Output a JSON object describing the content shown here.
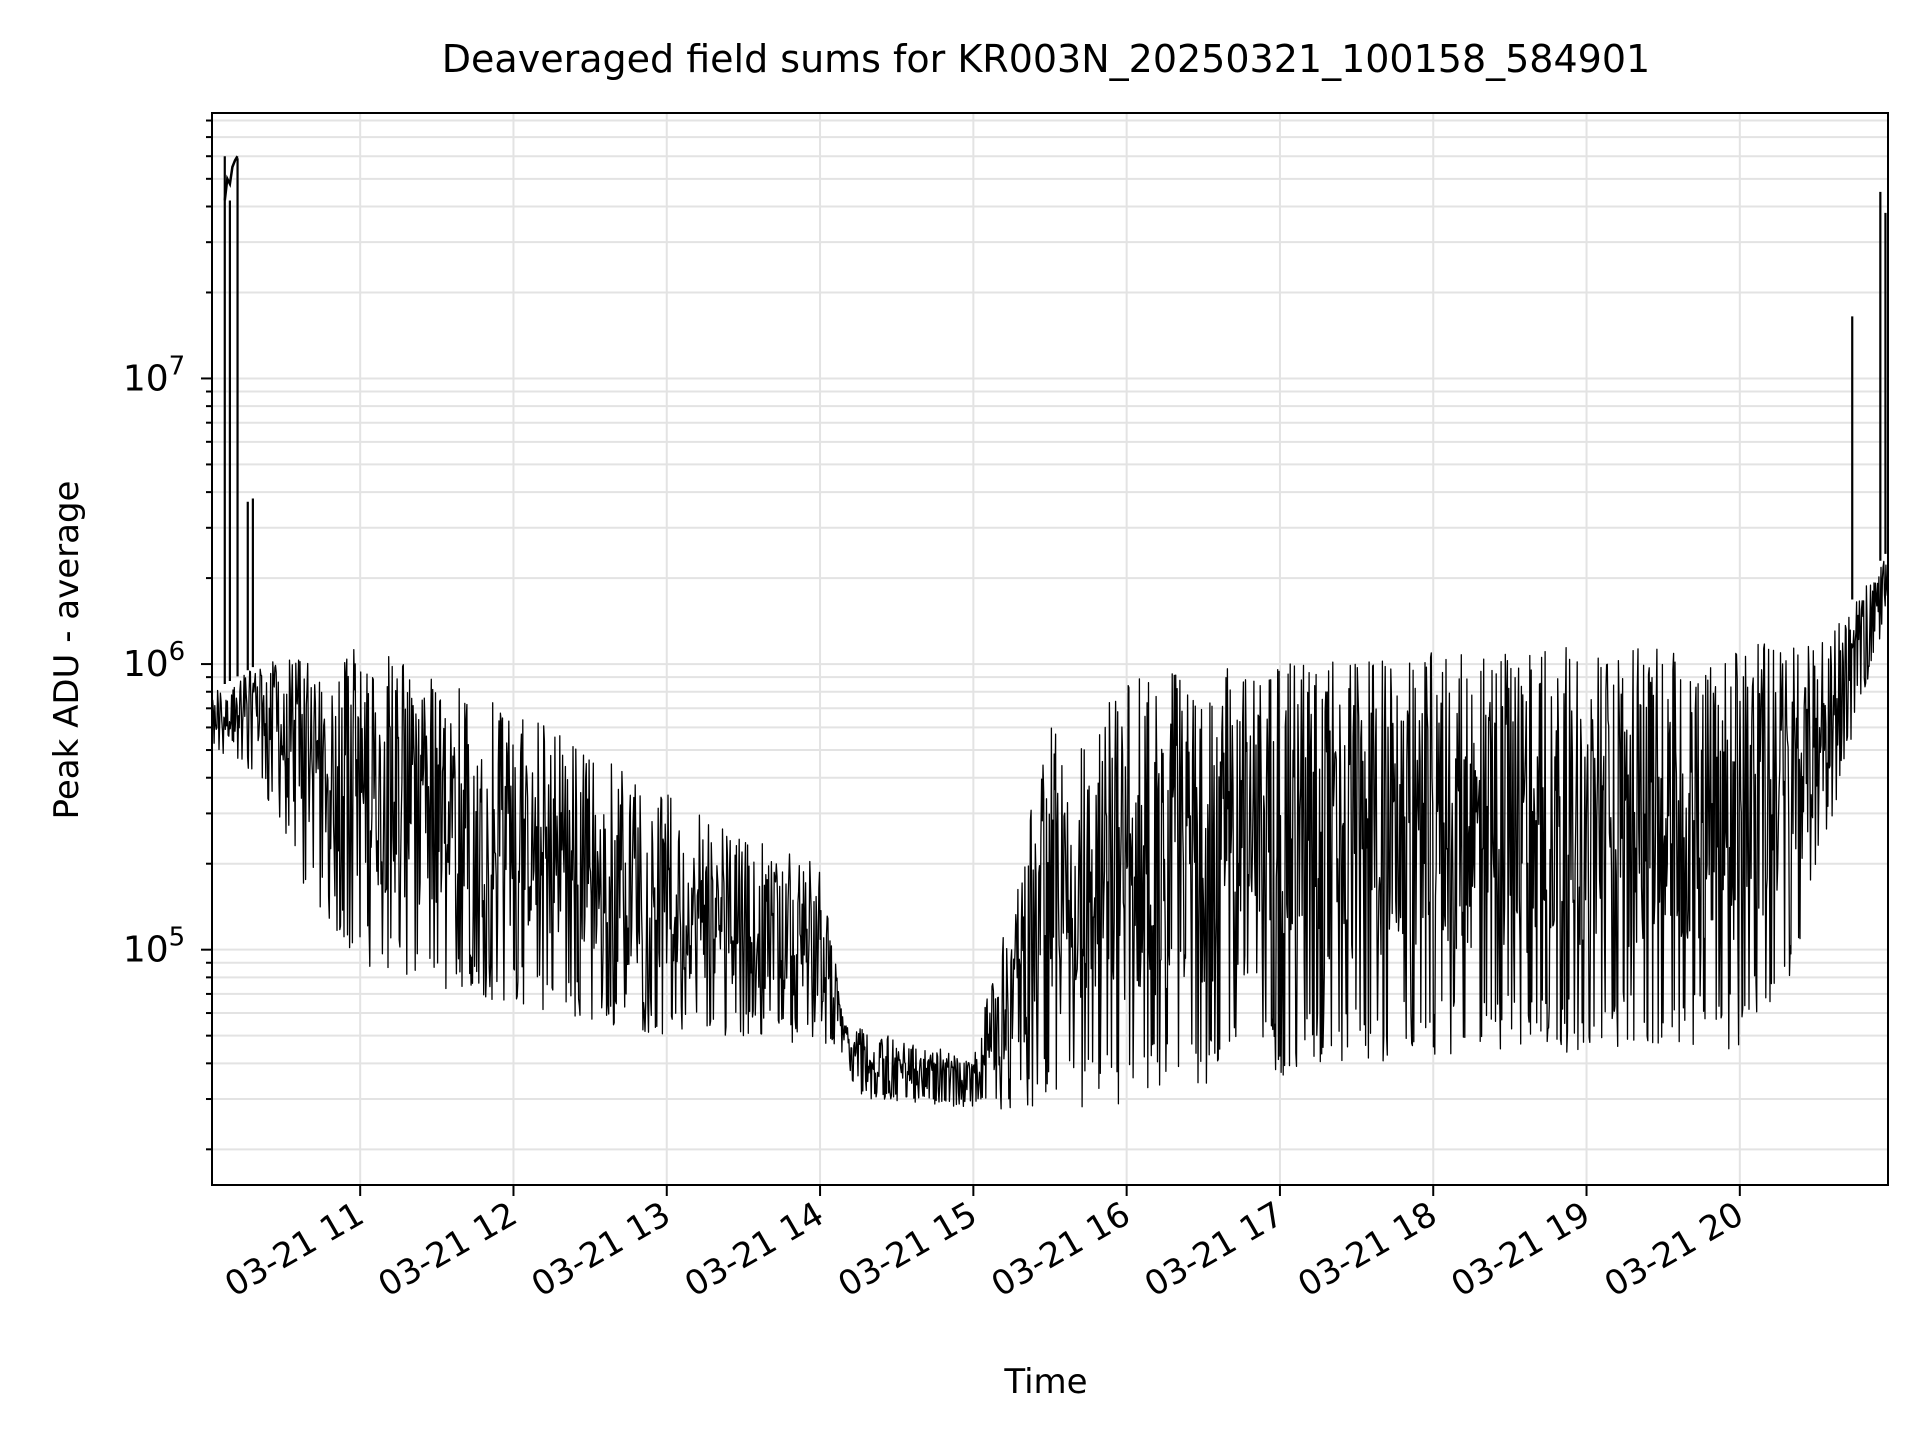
{
  "chart_data": {
    "type": "line",
    "title": "Deaveraged field sums for KR003N_20250321_100158_584901",
    "xlabel": "Time",
    "ylabel": "Peak ADU - average",
    "yscale": "log",
    "ylim": [
      15000,
      85000000
    ],
    "xlim": [
      "2025-03-21 10:02",
      "2025-03-21 20:58"
    ],
    "grid": true,
    "line_color": "#000000",
    "y_ticks": [
      {
        "value": 100000,
        "base": "10",
        "exp": "5"
      },
      {
        "value": 1000000,
        "base": "10",
        "exp": "6"
      },
      {
        "value": 10000000,
        "base": "10",
        "exp": "7"
      }
    ],
    "x_ticks": [
      {
        "value": "2025-03-21 11:00",
        "label": "03-21 11"
      },
      {
        "value": "2025-03-21 12:00",
        "label": "03-21 12"
      },
      {
        "value": "2025-03-21 13:00",
        "label": "03-21 13"
      },
      {
        "value": "2025-03-21 14:00",
        "label": "03-21 14"
      },
      {
        "value": "2025-03-21 15:00",
        "label": "03-21 15"
      },
      {
        "value": "2025-03-21 16:00",
        "label": "03-21 16"
      },
      {
        "value": "2025-03-21 17:00",
        "label": "03-21 17"
      },
      {
        "value": "2025-03-21 18:00",
        "label": "03-21 18"
      },
      {
        "value": "2025-03-21 19:00",
        "label": "03-21 19"
      },
      {
        "value": "2025-03-21 20:00",
        "label": "03-21 20"
      }
    ],
    "series": [
      {
        "style": "dense oscillating signal: low envelope and high envelope over time",
        "low_envelope": [
          {
            "x": "2025-03-21 10:02",
            "y": 500000
          },
          {
            "x": "2025-03-21 10:20",
            "y": 400000
          },
          {
            "x": "2025-03-21 10:40",
            "y": 150000
          },
          {
            "x": "2025-03-21 11:00",
            "y": 90000
          },
          {
            "x": "2025-03-21 11:30",
            "y": 70000
          },
          {
            "x": "2025-03-21 12:00",
            "y": 65000
          },
          {
            "x": "2025-03-21 12:30",
            "y": 55000
          },
          {
            "x": "2025-03-21 13:00",
            "y": 50000
          },
          {
            "x": "2025-03-21 13:30",
            "y": 50000
          },
          {
            "x": "2025-03-21 14:08",
            "y": 45000
          },
          {
            "x": "2025-03-21 14:15",
            "y": 30000
          },
          {
            "x": "2025-03-21 15:00",
            "y": 28000
          },
          {
            "x": "2025-03-21 15:30",
            "y": 27000
          },
          {
            "x": "2025-03-21 16:00",
            "y": 27000
          },
          {
            "x": "2025-03-21 16:30",
            "y": 33000
          },
          {
            "x": "2025-03-21 17:00",
            "y": 36000
          },
          {
            "x": "2025-03-21 18:00",
            "y": 42000
          },
          {
            "x": "2025-03-21 19:00",
            "y": 44000
          },
          {
            "x": "2025-03-21 20:00",
            "y": 45000
          },
          {
            "x": "2025-03-21 20:20",
            "y": 80000
          },
          {
            "x": "2025-03-21 20:45",
            "y": 600000
          },
          {
            "x": "2025-03-21 20:58",
            "y": 1500000
          }
        ],
        "high_envelope": [
          {
            "x": "2025-03-21 10:02",
            "y": 800000
          },
          {
            "x": "2025-03-21 10:20",
            "y": 1000000
          },
          {
            "x": "2025-03-21 11:00",
            "y": 1150000
          },
          {
            "x": "2025-03-21 11:30",
            "y": 950000
          },
          {
            "x": "2025-03-21 12:00",
            "y": 700000
          },
          {
            "x": "2025-03-21 12:30",
            "y": 500000
          },
          {
            "x": "2025-03-21 13:00",
            "y": 350000
          },
          {
            "x": "2025-03-21 13:30",
            "y": 250000
          },
          {
            "x": "2025-03-21 14:00",
            "y": 200000
          },
          {
            "x": "2025-03-21 14:10",
            "y": 55000
          },
          {
            "x": "2025-03-21 15:00",
            "y": 42000
          },
          {
            "x": "2025-03-21 15:30",
            "y": 600000
          },
          {
            "x": "2025-03-21 16:00",
            "y": 900000
          },
          {
            "x": "2025-03-21 17:00",
            "y": 1000000
          },
          {
            "x": "2025-03-21 18:00",
            "y": 1100000
          },
          {
            "x": "2025-03-21 19:00",
            "y": 1150000
          },
          {
            "x": "2025-03-21 20:00",
            "y": 1150000
          },
          {
            "x": "2025-03-21 20:35",
            "y": 1300000
          },
          {
            "x": "2025-03-21 20:50",
            "y": 2000000
          },
          {
            "x": "2025-03-21 20:58",
            "y": 2500000
          }
        ],
        "spikes": [
          {
            "x": "2025-03-21 10:07",
            "y": 60000000
          },
          {
            "x": "2025-03-21 10:09",
            "y": 42000000
          },
          {
            "x": "2025-03-21 10:12",
            "y": 59000000
          },
          {
            "x": "2025-03-21 10:16",
            "y": 3700000
          },
          {
            "x": "2025-03-21 10:18",
            "y": 3800000
          },
          {
            "x": "2025-03-21 20:44",
            "y": 16500000
          },
          {
            "x": "2025-03-21 20:55",
            "y": 45000000
          },
          {
            "x": "2025-03-21 20:57",
            "y": 38000000
          }
        ]
      }
    ]
  }
}
